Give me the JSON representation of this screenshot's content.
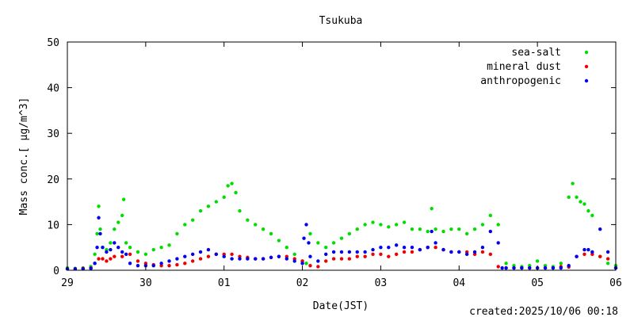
{
  "chart_data": {
    "type": "scatter",
    "title": "Tsukuba",
    "xlabel": "Date(JST)",
    "ylabel": "Mass conc.[ μg/m^3]",
    "ylim": [
      0,
      50
    ],
    "yticks": [
      "0",
      "10",
      "20",
      "30",
      "40",
      "50"
    ],
    "xlim": [
      0,
      7
    ],
    "xticks": [
      "29",
      "30",
      "01",
      "02",
      "03",
      "04",
      "05",
      "06"
    ],
    "legend_position": "top-right",
    "grid": false,
    "footer": "created:2025/10/06 00:18",
    "series": [
      {
        "name": "sea-salt",
        "color": "#00dd00",
        "x": [
          0.0,
          0.1,
          0.2,
          0.3,
          0.35,
          0.38,
          0.4,
          0.42,
          0.45,
          0.5,
          0.55,
          0.6,
          0.65,
          0.7,
          0.72,
          0.75,
          0.8,
          0.9,
          1.0,
          1.1,
          1.2,
          1.3,
          1.4,
          1.5,
          1.6,
          1.7,
          1.8,
          1.9,
          2.0,
          2.05,
          2.1,
          2.15,
          2.2,
          2.3,
          2.4,
          2.5,
          2.6,
          2.7,
          2.8,
          2.9,
          3.0,
          3.05,
          3.1,
          3.2,
          3.3,
          3.4,
          3.5,
          3.6,
          3.7,
          3.8,
          3.9,
          4.0,
          4.1,
          4.2,
          4.3,
          4.4,
          4.5,
          4.6,
          4.65,
          4.7,
          4.8,
          4.9,
          5.0,
          5.1,
          5.2,
          5.3,
          5.4,
          5.5,
          5.6,
          5.7,
          5.8,
          5.9,
          6.0,
          6.1,
          6.2,
          6.3,
          6.4,
          6.45,
          6.5,
          6.55,
          6.6,
          6.65,
          6.7,
          6.8,
          6.9,
          7.0
        ],
        "y": [
          0.5,
          0.4,
          0.5,
          0.8,
          3.5,
          8,
          14,
          9,
          5,
          4.5,
          6,
          9,
          10.5,
          12,
          15.5,
          6,
          5,
          4,
          3.5,
          4.5,
          5,
          5.5,
          8,
          10,
          11,
          13,
          14,
          15,
          16,
          18.5,
          19,
          17,
          13,
          11,
          10,
          9,
          8,
          6.5,
          5,
          3.5,
          2,
          1.5,
          8,
          6,
          5,
          6,
          7,
          8,
          9,
          10,
          10.5,
          10,
          9.5,
          10,
          10.5,
          9,
          9,
          8.5,
          13.5,
          9,
          8.5,
          9,
          9,
          8,
          9,
          10,
          12,
          10,
          1.5,
          1,
          0.8,
          1,
          2,
          1,
          0.8,
          1.5,
          16,
          19,
          16,
          15,
          14.5,
          13,
          12,
          3,
          1.5,
          1
        ]
      },
      {
        "name": "mineral dust",
        "color": "#ee0000",
        "x": [
          0.0,
          0.1,
          0.2,
          0.3,
          0.35,
          0.4,
          0.45,
          0.5,
          0.55,
          0.6,
          0.7,
          0.8,
          0.9,
          1.0,
          1.1,
          1.2,
          1.3,
          1.4,
          1.5,
          1.6,
          1.7,
          1.8,
          1.9,
          2.0,
          2.1,
          2.2,
          2.3,
          2.4,
          2.5,
          2.6,
          2.7,
          2.8,
          2.9,
          3.0,
          3.1,
          3.2,
          3.3,
          3.4,
          3.5,
          3.6,
          3.7,
          3.8,
          3.9,
          4.0,
          4.1,
          4.2,
          4.3,
          4.4,
          4.5,
          4.6,
          4.7,
          4.8,
          4.9,
          5.0,
          5.1,
          5.2,
          5.3,
          5.4,
          5.5,
          5.6,
          5.7,
          5.8,
          5.9,
          6.0,
          6.1,
          6.2,
          6.3,
          6.4,
          6.5,
          6.6,
          6.7,
          6.8,
          6.9,
          7.0
        ],
        "y": [
          0.3,
          0.3,
          0.4,
          0.5,
          1.5,
          2.5,
          2.5,
          2,
          2.5,
          3,
          3,
          3.5,
          2,
          1.5,
          1.2,
          1,
          1,
          1.2,
          1.5,
          2,
          2.5,
          3,
          3.5,
          3.5,
          3.5,
          3,
          2.8,
          2.5,
          2.5,
          2.8,
          3,
          3,
          2.5,
          2,
          1,
          0.8,
          2,
          2.5,
          2.5,
          2.5,
          3,
          3,
          3.5,
          3.5,
          3,
          3.5,
          4,
          4,
          4.5,
          5,
          5,
          4.5,
          4,
          4,
          4,
          3.5,
          4,
          3.5,
          0.8,
          0.5,
          0.5,
          0.5,
          0.5,
          0.5,
          0.5,
          0.5,
          0.8,
          0.7,
          3,
          3.5,
          3.5,
          3,
          2.5,
          0.5
        ]
      },
      {
        "name": "anthropogenic",
        "color": "#0000ee",
        "x": [
          0.0,
          0.1,
          0.2,
          0.3,
          0.35,
          0.38,
          0.4,
          0.42,
          0.45,
          0.5,
          0.55,
          0.6,
          0.65,
          0.7,
          0.75,
          0.8,
          0.9,
          1.0,
          1.1,
          1.2,
          1.3,
          1.4,
          1.5,
          1.6,
          1.7,
          1.8,
          1.9,
          2.0,
          2.1,
          2.2,
          2.3,
          2.4,
          2.5,
          2.6,
          2.7,
          2.8,
          2.9,
          3.0,
          3.02,
          3.05,
          3.08,
          3.1,
          3.2,
          3.3,
          3.4,
          3.5,
          3.6,
          3.7,
          3.8,
          3.9,
          4.0,
          4.1,
          4.2,
          4.3,
          4.4,
          4.5,
          4.6,
          4.65,
          4.7,
          4.8,
          4.9,
          5.0,
          5.1,
          5.2,
          5.3,
          5.4,
          5.5,
          5.55,
          5.6,
          5.7,
          5.8,
          5.9,
          6.0,
          6.1,
          6.2,
          6.3,
          6.4,
          6.5,
          6.6,
          6.65,
          6.7,
          6.8,
          6.9,
          7.0
        ],
        "y": [
          0.3,
          0.3,
          0.3,
          0.4,
          1.5,
          5,
          11.5,
          8,
          5,
          4,
          4.5,
          6,
          5,
          4,
          3.5,
          1.5,
          1,
          1,
          1,
          1.5,
          2,
          2.5,
          3,
          3.5,
          4,
          4.5,
          3.5,
          3,
          2.5,
          2.5,
          2.5,
          2.5,
          2.5,
          2.8,
          3,
          2.5,
          2,
          1.5,
          7,
          10,
          6,
          3,
          2,
          3.5,
          4,
          4,
          4,
          4,
          4,
          4.5,
          5,
          5,
          5.5,
          5,
          5,
          4.5,
          5,
          8.5,
          6,
          4.5,
          4,
          4,
          3.5,
          4,
          5,
          8.5,
          6,
          0.5,
          0.5,
          0.5,
          0.5,
          0.5,
          0.5,
          0.5,
          0.5,
          0.5,
          1,
          3,
          4.5,
          4.5,
          4,
          9,
          4,
          0.5
        ]
      }
    ]
  }
}
